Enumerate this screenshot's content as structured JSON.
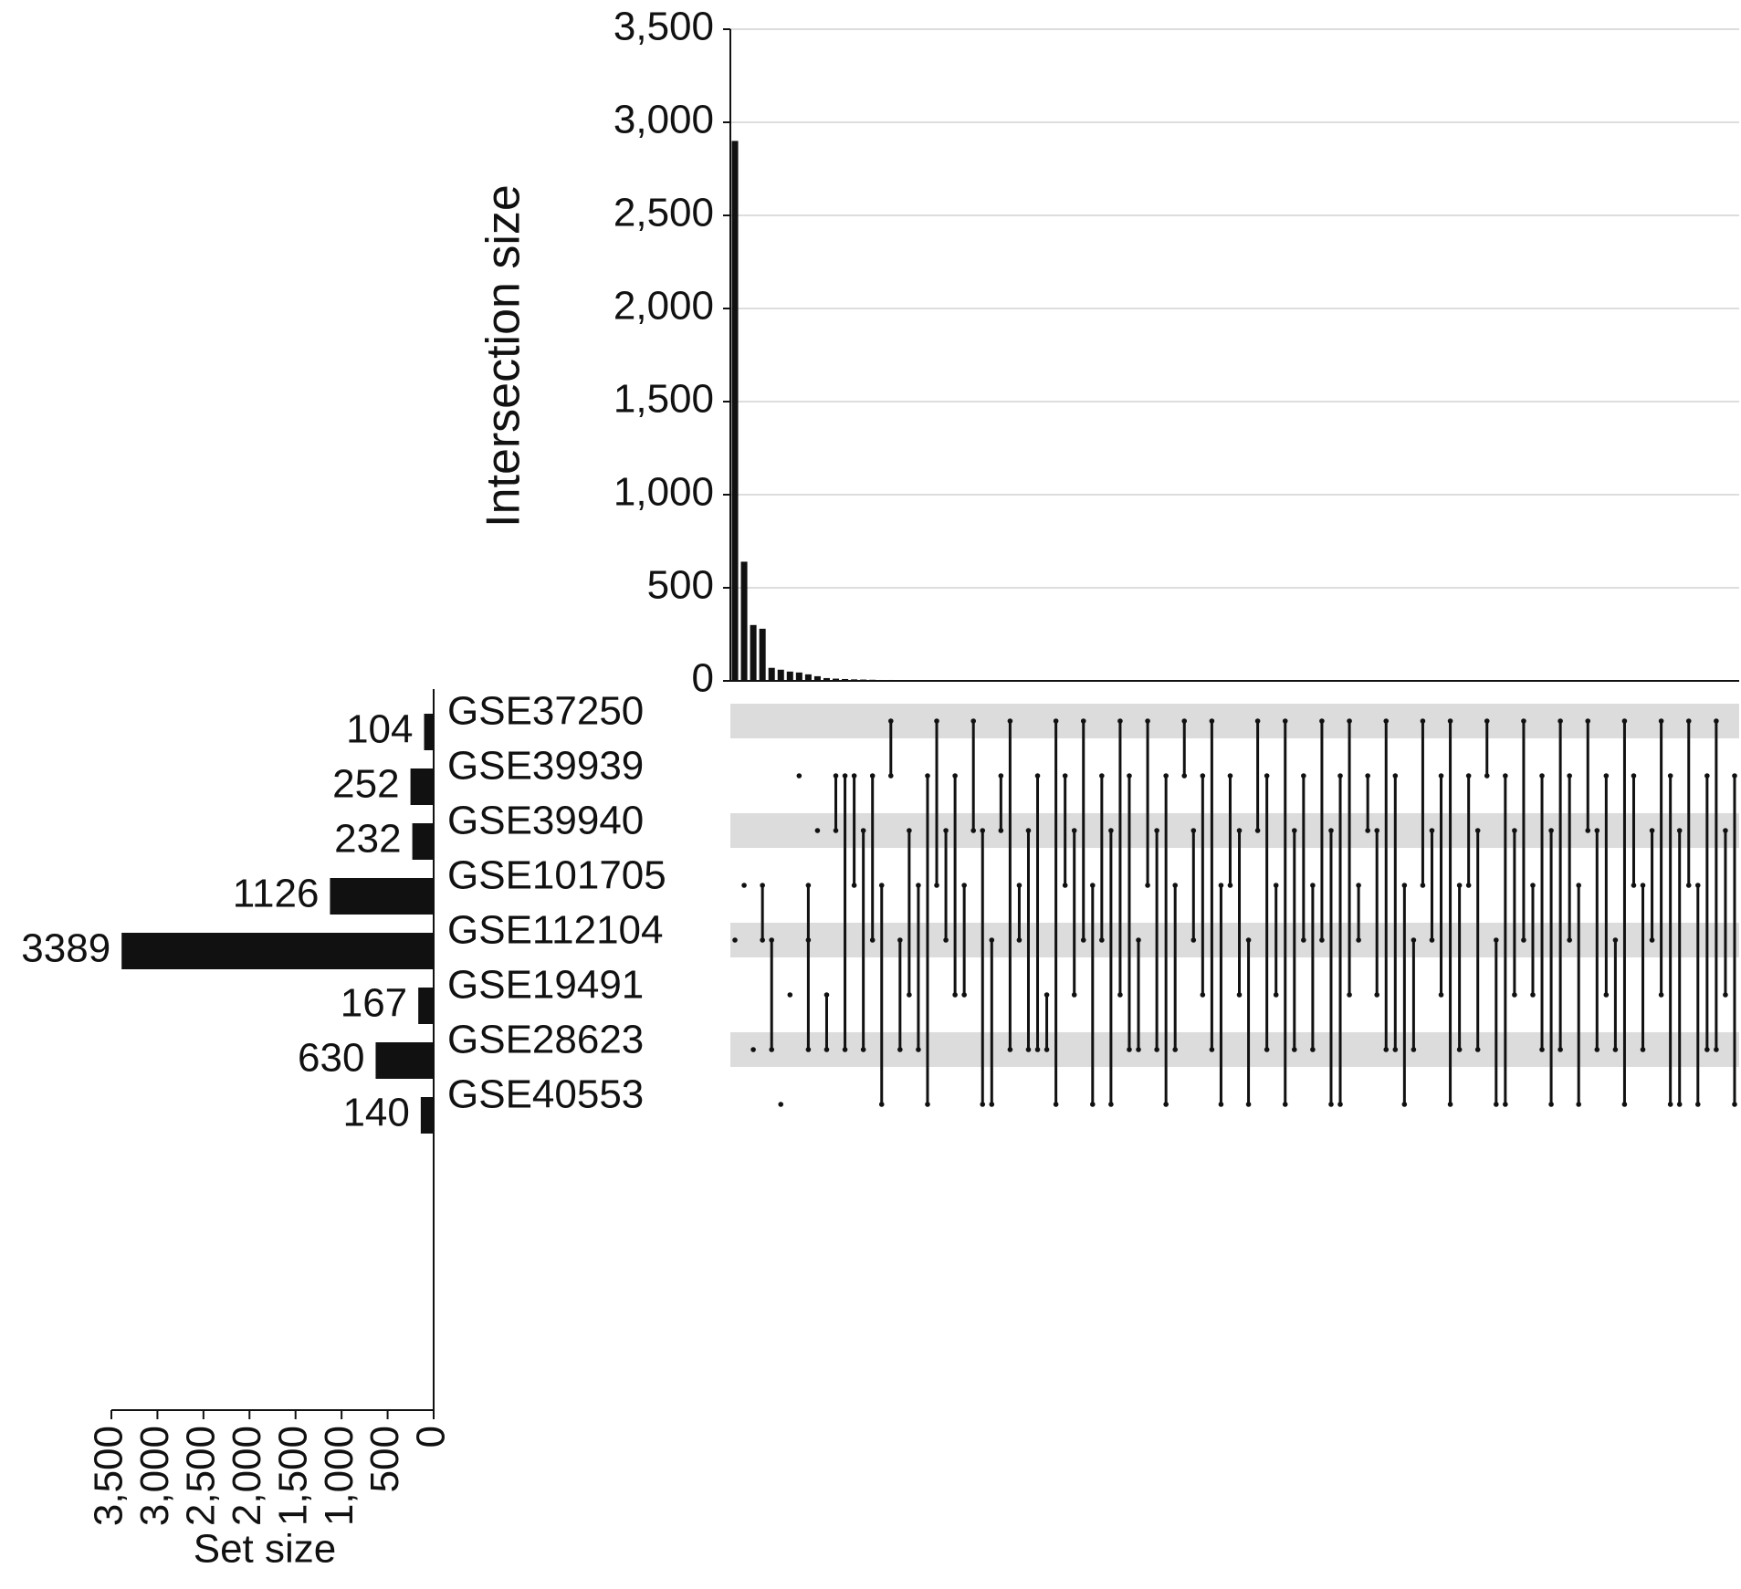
{
  "chart_data": {
    "type": "upset",
    "y_label": "Intersection size",
    "x_label": "Set size",
    "sets": [
      "GSE37250",
      "GSE39939",
      "GSE39940",
      "GSE101705",
      "GSE112104",
      "GSE19491",
      "GSE28623",
      "GSE40553"
    ],
    "set_sizes": [
      104,
      252,
      232,
      1126,
      3389,
      167,
      630,
      140
    ],
    "xlim": [
      0,
      3500
    ],
    "xticks": [
      0,
      500,
      {
        "value": 1000,
        "label": "1,000"
      },
      {
        "value": 1500,
        "label": "1,500"
      },
      {
        "value": 2000,
        "label": "2,000"
      },
      {
        "value": 2500,
        "label": "2,500"
      },
      {
        "value": 3000,
        "label": "3,000"
      },
      {
        "value": 3500,
        "label": "3,500"
      }
    ],
    "ylim": [
      0,
      3500
    ],
    "yticks": [
      0,
      500,
      {
        "value": 1000,
        "label": "1,000"
      },
      {
        "value": 1500,
        "label": "1,500"
      },
      {
        "value": 2000,
        "label": "2,000"
      },
      {
        "value": 2500,
        "label": "2,500"
      },
      {
        "value": 3000,
        "label": "3,000"
      },
      {
        "value": 3500,
        "label": "3,500"
      }
    ],
    "grid": true,
    "color": "#111111",
    "stripe_color": "#dcdcdc",
    "intersections": {
      "values": [
        2900,
        640,
        300,
        280,
        70,
        60,
        50,
        45,
        35,
        25,
        15,
        12,
        10,
        8,
        7,
        6,
        5,
        5,
        4,
        4,
        3,
        3,
        3,
        2,
        2,
        2,
        2,
        2,
        1,
        1,
        1,
        1,
        1,
        1,
        1,
        1,
        1,
        1,
        1,
        1,
        1,
        1,
        1,
        1,
        1,
        1,
        1,
        1,
        1,
        1,
        1,
        1,
        1,
        1,
        1,
        1,
        1,
        1,
        1,
        1,
        1,
        1,
        1,
        1,
        1,
        1,
        1,
        1,
        1,
        1,
        1,
        1,
        1,
        1,
        1,
        1,
        1,
        1,
        1,
        1,
        1,
        1,
        1,
        1,
        1,
        1,
        1,
        1,
        1,
        1,
        1,
        1,
        1,
        1,
        1,
        1,
        1,
        1,
        1,
        1,
        1,
        1,
        1,
        1,
        1,
        1,
        1,
        1,
        1,
        1
      ],
      "sets": [
        [
          4
        ],
        [
          3
        ],
        [
          6
        ],
        [
          3,
          4
        ],
        [
          4,
          6
        ],
        [
          7
        ],
        [
          5
        ],
        [
          1
        ],
        [
          3,
          4,
          6
        ],
        [
          2
        ],
        [
          5,
          6
        ],
        [
          1,
          2
        ],
        [
          1,
          6
        ],
        [
          1,
          3
        ],
        [
          2,
          6
        ],
        [
          1,
          4
        ],
        [
          3,
          7
        ],
        [
          0,
          1
        ],
        [
          4,
          6
        ],
        [
          2,
          5
        ],
        [
          3,
          6
        ],
        [
          1,
          7
        ],
        [
          0,
          3
        ],
        [
          2,
          4
        ],
        [
          1,
          5
        ],
        [
          3,
          5
        ],
        [
          0,
          2
        ],
        [
          2,
          7
        ],
        [
          4,
          7
        ],
        [
          1,
          2
        ],
        [
          0,
          6
        ],
        [
          3,
          4
        ],
        [
          2,
          6
        ],
        [
          1,
          6
        ],
        [
          5,
          6
        ],
        [
          0,
          7
        ],
        [
          1,
          3
        ],
        [
          2,
          5
        ],
        [
          0,
          4
        ],
        [
          3,
          7
        ],
        [
          1,
          4
        ],
        [
          2,
          7
        ],
        [
          0,
          5
        ],
        [
          1,
          6
        ],
        [
          4,
          6
        ],
        [
          0,
          3
        ],
        [
          2,
          6
        ],
        [
          1,
          7
        ],
        [
          3,
          6
        ],
        [
          0,
          1
        ],
        [
          2,
          4
        ],
        [
          1,
          5
        ],
        [
          0,
          6
        ],
        [
          3,
          7
        ],
        [
          1,
          3
        ],
        [
          2,
          5
        ],
        [
          4,
          7
        ],
        [
          0,
          2
        ],
        [
          1,
          6
        ],
        [
          3,
          5
        ],
        [
          0,
          7
        ],
        [
          2,
          6
        ],
        [
          1,
          4
        ],
        [
          3,
          6
        ],
        [
          0,
          4
        ],
        [
          2,
          7
        ],
        [
          1,
          7
        ],
        [
          0,
          5
        ],
        [
          3,
          4
        ],
        [
          1,
          2
        ],
        [
          2,
          5
        ],
        [
          0,
          6
        ],
        [
          1,
          6
        ],
        [
          3,
          7
        ],
        [
          4,
          6
        ],
        [
          0,
          3
        ],
        [
          2,
          4
        ],
        [
          1,
          5
        ],
        [
          0,
          7
        ],
        [
          3,
          6
        ],
        [
          1,
          3
        ],
        [
          2,
          6
        ],
        [
          0,
          1
        ],
        [
          4,
          7
        ],
        [
          1,
          7
        ],
        [
          2,
          5
        ],
        [
          0,
          4
        ],
        [
          3,
          5
        ],
        [
          1,
          6
        ],
        [
          2,
          7
        ],
        [
          0,
          6
        ],
        [
          1,
          4
        ],
        [
          3,
          7
        ],
        [
          0,
          2
        ],
        [
          2,
          6
        ],
        [
          1,
          5
        ],
        [
          4,
          6
        ],
        [
          0,
          7
        ],
        [
          1,
          3
        ],
        [
          3,
          6
        ],
        [
          2,
          4
        ],
        [
          0,
          5
        ],
        [
          1,
          7
        ],
        [
          2,
          7
        ],
        [
          0,
          3
        ],
        [
          3,
          7
        ],
        [
          1,
          6
        ],
        [
          0,
          6
        ],
        [
          2,
          5
        ],
        [
          1,
          7
        ]
      ]
    }
  }
}
